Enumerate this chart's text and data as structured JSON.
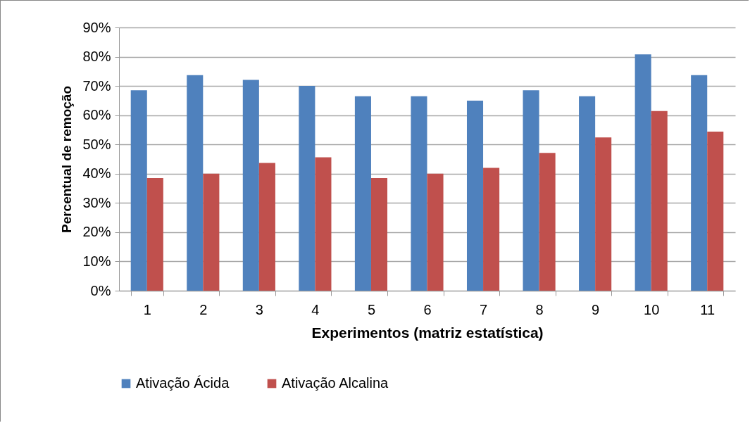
{
  "chart_data": {
    "type": "bar",
    "xlabel": "Experimentos (matriz estatística)",
    "ylabel": "Percentual de remoção",
    "categories": [
      "1",
      "2",
      "3",
      "4",
      "5",
      "6",
      "7",
      "8",
      "9",
      "10",
      "11"
    ],
    "series": [
      {
        "name": "Ativação Ácida",
        "color": "#4f81bd",
        "values": [
          68.5,
          73.7,
          72.1,
          70,
          66.5,
          66.5,
          65,
          68.5,
          66.5,
          80.8,
          73.7
        ]
      },
      {
        "name": "Ativação Alcalina",
        "color": "#c0504d",
        "values": [
          38.5,
          40,
          43.7,
          45.6,
          38.5,
          40,
          42,
          47.1,
          52.4,
          61.4,
          54.4
        ]
      }
    ],
    "ylim": [
      0,
      90
    ],
    "yticks": [
      {
        "value": 0,
        "label": "0%"
      },
      {
        "value": 10,
        "label": "10%"
      },
      {
        "value": 20,
        "label": "20%"
      },
      {
        "value": 30,
        "label": "30%"
      },
      {
        "value": 40,
        "label": "40%"
      },
      {
        "value": 50,
        "label": "50%"
      },
      {
        "value": 60,
        "label": "60%"
      },
      {
        "value": 70,
        "label": "70%"
      },
      {
        "value": 80,
        "label": "80%"
      },
      {
        "value": 90,
        "label": "90%"
      }
    ],
    "grid": "y",
    "legend": "bottom"
  }
}
